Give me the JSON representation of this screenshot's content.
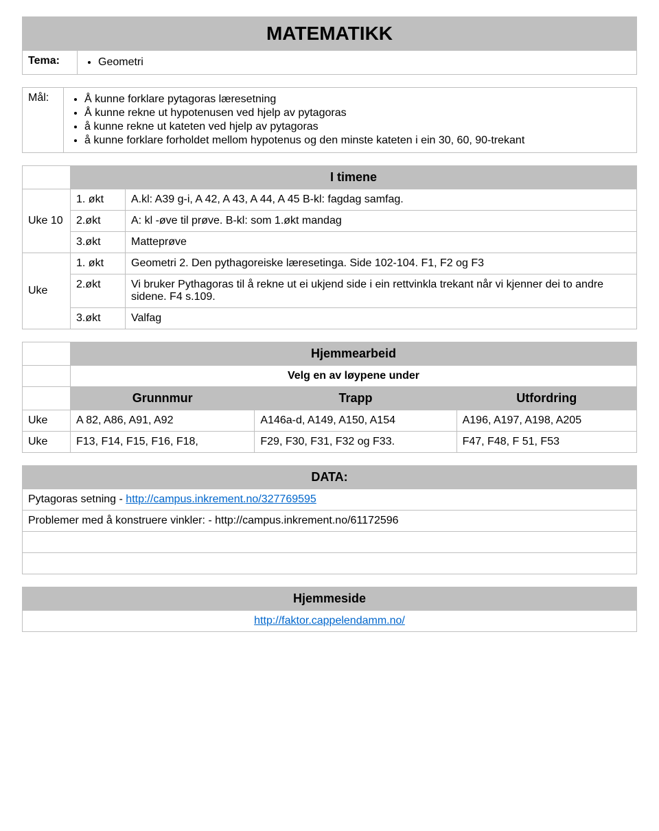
{
  "subject_title": "MATEMATIKK",
  "tema_label": "Tema:",
  "tema_items": [
    "Geometri"
  ],
  "maal_label": "Mål:",
  "maal_items": [
    "Å kunne forklare pytagoras læresetning",
    "Å kunne rekne ut hypotenusen ved hjelp av pytagoras",
    "å kunne rekne ut kateten ved hjelp av pytagoras",
    "å kunne forklare forholdet mellom hypotenus og den minste kateten i ein 30, 60, 90-trekant"
  ],
  "itimene_header": "I timene",
  "schedule": [
    {
      "week": "Uke 10",
      "rows": [
        {
          "slot": "1. økt",
          "text": "A.kl: A39 g-i, A 42, A 43, A 44, A 45 B-kl: fagdag samfag."
        },
        {
          "slot": "2.økt",
          "text": "A: kl -øve til prøve.  B-kl: som 1.økt mandag"
        },
        {
          "slot": "3.økt",
          "text": "Matteprøve"
        }
      ]
    },
    {
      "week": "Uke",
      "rows": [
        {
          "slot": "1. økt",
          "text": "Geometri 2. Den pythagoreiske læresetinga. Side 102-104. F1, F2 og F3"
        },
        {
          "slot": "2.økt",
          "text": "Vi bruker Pythagoras til å rekne ut ei ukjend side i ein rettvinkla trekant når vi kjenner dei to andre sidene. F4 s.109."
        },
        {
          "slot": "3.økt",
          "text": "Valfag"
        }
      ]
    }
  ],
  "homework_header": "Hjemmearbeid",
  "homework_sub": "Velg en av løypene under",
  "hw_colheads": [
    "Grunnmur",
    "Trapp",
    "Utfordring"
  ],
  "hw_rows": [
    {
      "week": "Uke",
      "cells": [
        "A 82, A86, A91, A92",
        "A146a-d, A149, A150, A154",
        "A196, A197, A198, A205"
      ]
    },
    {
      "week": "Uke",
      "cells": [
        "F13, F14, F15, F16, F18,",
        "F29, F30, F31, F32 og F33.",
        "F47, F48, F 51, F53"
      ]
    }
  ],
  "data_header": "DATA:",
  "data_line1_prefix": "Pytagoras setning  - ",
  "data_link1": "http://campus.inkrement.no/327769595",
  "data_line2": "Problemer med å konstruere vinkler: - http://campus.inkrement.no/61172596",
  "hjemmeside_header": "Hjemmeside",
  "hjemmeside_link": "http://faktor.cappelendamm.no/",
  "colors": {
    "header_bg": "#bfbfbf",
    "border": "#bfbfbf",
    "link": "#0066cc"
  }
}
